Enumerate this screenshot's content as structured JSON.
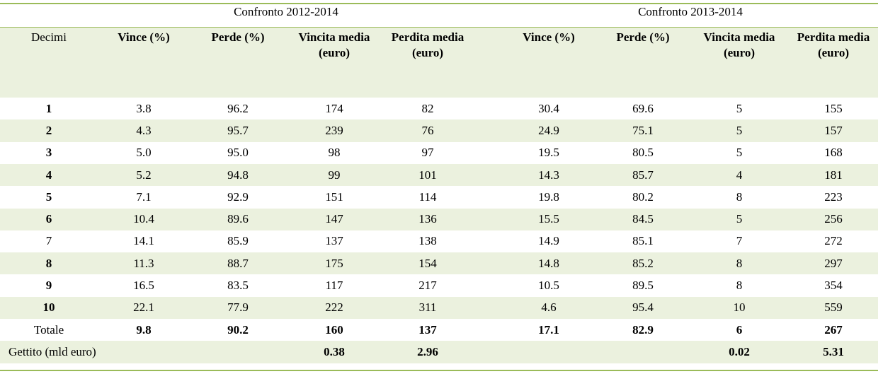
{
  "table": {
    "group_headers": [
      "Confronto 2012-2014",
      "Confronto 2013-2014"
    ],
    "columns": [
      "Decimi",
      "Vince (%)",
      "Perde (%)",
      "Vincita media (euro)",
      "Perdita media (euro)",
      "Vince (%)",
      "Perde (%)",
      "Vincita media (euro)",
      "Perdita media (euro)"
    ],
    "rows": [
      [
        "1",
        "3.8",
        "96.2",
        "174",
        "82",
        "30.4",
        "69.6",
        "5",
        "155"
      ],
      [
        "2",
        "4.3",
        "95.7",
        "239",
        "76",
        "24.9",
        "75.1",
        "5",
        "157"
      ],
      [
        "3",
        "5.0",
        "95.0",
        "98",
        "97",
        "19.5",
        "80.5",
        "5",
        "168"
      ],
      [
        "4",
        "5.2",
        "94.8",
        "99",
        "101",
        "14.3",
        "85.7",
        "4",
        "181"
      ],
      [
        "5",
        "7.1",
        "92.9",
        "151",
        "114",
        "19.8",
        "80.2",
        "8",
        "223"
      ],
      [
        "6",
        "10.4",
        "89.6",
        "147",
        "136",
        "15.5",
        "84.5",
        "5",
        "256"
      ],
      [
        "7",
        "14.1",
        "85.9",
        "137",
        "138",
        "14.9",
        "85.1",
        "7",
        "272"
      ],
      [
        "8",
        "11.3",
        "88.7",
        "175",
        "154",
        "14.8",
        "85.2",
        "8",
        "297"
      ],
      [
        "9",
        "16.5",
        "83.5",
        "117",
        "217",
        "10.5",
        "89.5",
        "8",
        "354"
      ],
      [
        "10",
        "22.1",
        "77.9",
        "222",
        "311",
        "4.6",
        "95.4",
        "10",
        "559"
      ],
      [
        "Totale",
        "9.8",
        "90.2",
        "160",
        "137",
        "17.1",
        "82.9",
        "6",
        "267"
      ],
      [
        "Gettito (mld euro)",
        null,
        null,
        "0.38",
        "2.96",
        null,
        null,
        "0.02",
        "5.31"
      ]
    ]
  }
}
